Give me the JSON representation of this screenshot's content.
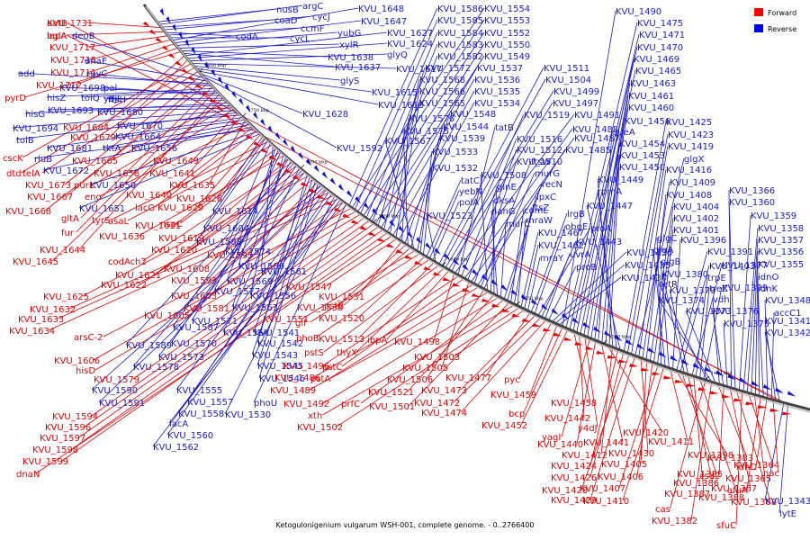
{
  "caption": "Ketogulonigenium vulgarum WSH-001, complete genome. - 0..2766400",
  "legend": {
    "position": "top-right",
    "items": [
      {
        "label": "Forward",
        "color": "#ff0000"
      },
      {
        "label": "Reverse",
        "color": "#0000ff"
      }
    ]
  },
  "ticks": [
    "1800 kbp",
    "1750 kbp",
    "1700 kbp",
    "1650 kbp",
    "1600 kbp",
    "1550 kbp",
    "1500 kbp",
    "1450 kbp"
  ],
  "forward_labels": [
    "KVU_1731",
    "lepA",
    "KVU_1717",
    "KVU_1715",
    "KVU_1711",
    "KVU_1712",
    "pyrD",
    "KVU_1684",
    "KVU_1679",
    "cscK",
    "dtd",
    "telA",
    "KVU_1673",
    "KVU_1667",
    "KVU_1668",
    "gltA",
    "fur",
    "KVU_1644",
    "KVU_1645",
    "KVU_1665",
    "purL",
    "KVU_1658",
    "KVU_1649",
    "KVU_1641",
    "KVU_1635",
    "eno",
    "KVU_1640",
    "lacG",
    "KVU_1629",
    "KVU_1626",
    "tyrS",
    "asaL",
    "KVU_1631",
    "nspC",
    "KVU_1636",
    "KVU_1619",
    "codAch2",
    "KVU_1621",
    "KVU_1620",
    "KVU_1622",
    "KVU_1625",
    "KVU_1608",
    "KVU_1595",
    "KVU_1593",
    "KVU_1603",
    "KVU_1632",
    "KVU_1633",
    "KVU_1634",
    "KVU_1605",
    "KVU_1581",
    "arsC-2",
    "KVU_1606",
    "hisD",
    "KVU_1579",
    "KVU_1594",
    "KVU_1596",
    "KVU_1597",
    "KVU_1598",
    "KVU_1599",
    "dnaN",
    "KVU_1547",
    "KVU_1531",
    "KVU_1538",
    "pstB",
    "KVU_1551",
    "glf",
    "KVU_1520",
    "phoB",
    "KVU_1513",
    "pstS",
    "thyX",
    "ibpA",
    "KVU_1498",
    "KVU_1496",
    "pstC",
    "KVU_1505",
    "KVU_1486",
    "pstA",
    "KVU_1506",
    "KVU_1489",
    "KVU_1521",
    "KVU_1492",
    "prfC",
    "KVU_1501",
    "xth",
    "KVU_1502",
    "KVU_1503",
    "KVU_1477",
    "KVU_1473",
    "KVU_1472",
    "KVU_1474",
    "pyc",
    "KVU_1459",
    "bcp",
    "KVU_1452",
    "KVU_1458",
    "KVU_1442",
    "y4dJ",
    "yagI",
    "KVU_1440",
    "KVU_1441",
    "KVU_1420",
    "KVU_1412",
    "KVU_1424",
    "KVU_1426",
    "KVU_1428",
    "KVU_1429",
    "KVU_1430",
    "KVU_1405",
    "KVU_1406",
    "KVU_1407",
    "KVU_1410",
    "KVU_1411",
    "KVU_1398",
    "KVU_1385",
    "KVU_1386",
    "KVU_1387",
    "KVU_1388",
    "cas",
    "KVU_1382",
    "KVU_1383",
    "csd2",
    "KVU_1367",
    "KVU_1368",
    "sfuC",
    "KVU_1364",
    "KVU_1365",
    "afuA",
    "idnD",
    "nac",
    "aatB",
    "bglA"
  ],
  "reverse_labels": [
    "nusB",
    "argC",
    "coaD",
    "cycJ",
    "codA",
    "ccmF",
    "cycL",
    "KVU_1648",
    "KVU_1647",
    "yubG",
    "xylR",
    "KVU_1638",
    "KVU_1637",
    "KVU_1627",
    "KVU_1624",
    "glyQ",
    "KVU_1617",
    "glyS",
    "KVU_1615",
    "KVU_1613",
    "KVU_1628",
    "KVU_1592",
    "deoB",
    "dnaE",
    "add",
    "ruvC",
    "hisZ",
    "tolQ",
    "KVU_1698",
    "pal",
    "ftsH",
    "ydjL",
    "hisG",
    "KVU_1693",
    "KVU_1680",
    "KVU_1694",
    "tolB",
    "KVU_1670",
    "KVU_1664",
    "KVU_1681",
    "tktA",
    "KVU_1656",
    "KVU_1672",
    "rluB",
    "KVU_1650",
    "KVU_1651",
    "KVU_1614",
    "KVU_1604",
    "KVU_1588",
    "KVU_1574",
    "KVU_1561",
    "KVU_1580",
    "KVU_1569",
    "KVU_1577",
    "KVU_1556",
    "KVU_1563",
    "KVU_1587",
    "KVU_1571",
    "KVU_1589",
    "KVU_1570",
    "KVU_1564",
    "KVU_1578",
    "KVU_1573",
    "KVU_1542",
    "KVU_1541",
    "KVU_1543",
    "KVU_1545",
    "KVU_1546",
    "KVU_1590",
    "KVU_1591",
    "KVU_1555",
    "KVU_1557",
    "KVU_1558",
    "KVU_1530",
    "KVU_1560",
    "KVU_1562",
    "lacA",
    "phoU",
    "KVU_1586",
    "KVU_1554",
    "KVU_1585",
    "KVU_1553",
    "KVU_1584",
    "KVU_1552",
    "KVU_1583",
    "KVU_1550",
    "KVU_1582",
    "KVU_1549",
    "KVU_1572",
    "KVU_1537",
    "KVU_1568",
    "KVU_1536",
    "KVU_1566",
    "KVU_1535",
    "KVU_1565",
    "KVU_1534",
    "KVU_1576",
    "KVU_1548",
    "KVU_1575",
    "KVU_1544",
    "KVU_1567",
    "KVU_1539",
    "KVU_1533",
    "KVU_1532",
    "tatC",
    "yebN",
    "polA",
    "KVU_1523",
    "KVU_1511",
    "KVU_1504",
    "KVU_1499",
    "KVU_1497",
    "KVU_1519",
    "KVU_1491",
    "tatB",
    "KVU_1516",
    "KVU_1488",
    "KVU_1512",
    "KVU_1487",
    "KVU_1510",
    "KVU_1485",
    "ftsW",
    "murG",
    "KVU_1508",
    "glnE",
    "dksA",
    "nahG",
    "murC",
    "recN",
    "lpxC",
    "comL",
    "ftsZ",
    "mraW",
    "KVU_1467",
    "KVU_1462",
    "mraY",
    "lrgB",
    "obgE",
    "proA",
    "KVU_1443",
    "uvrA",
    "proB",
    "KVU_1436",
    "KVU_1435",
    "KVU_1434",
    "KVU_1490",
    "KVU_1475",
    "KVU_1471",
    "KVU_1470",
    "KVU_1469",
    "KVU_1465",
    "KVU_1463",
    "KVU_1461",
    "KVU_1460",
    "KVU_1456",
    "queA",
    "KVU_1454",
    "KVU_1453",
    "KVU_1450",
    "KVU_1449",
    "rpmA",
    "KVU_1447",
    "KVU_1425",
    "KVU_1423",
    "KVU_1419",
    "glgX",
    "KVU_1416",
    "KVU_1409",
    "KVU_1408",
    "KVU_1404",
    "KVU_1402",
    "KVU_1401",
    "glgC",
    "glgA",
    "glgB",
    "KVU_1396",
    "KVU_1391",
    "KVU_1403",
    "KVU_1380",
    "KVU_1379",
    "KVU_1377",
    "trpE",
    "treZ",
    "KVU_1399",
    "tetR",
    "KVU_1374",
    "KVU_1373",
    "vdh",
    "KVU_1376",
    "KVU_1375",
    "KVU_1366",
    "KVU_1360",
    "KVU_1359",
    "KVU_1358",
    "KVU_1357",
    "KVU_1356",
    "KVU_1355",
    "idnO",
    "idnK",
    "KVU_1348",
    "accC1",
    "KVU_1341",
    "KVU_1342",
    "KVU_1343",
    "lytE"
  ]
}
